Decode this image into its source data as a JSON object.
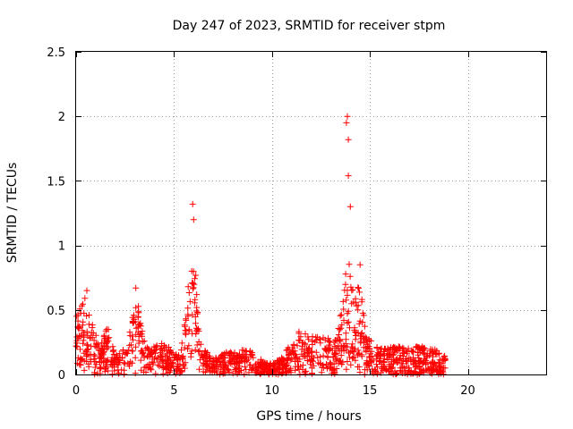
{
  "chart_data": {
    "type": "scatter",
    "title": "Day 247 of 2023, SRMTID for receiver stpm",
    "xlabel": "GPS time / hours",
    "ylabel": "SRMTID / TECUs",
    "xlim": [
      0,
      24
    ],
    "ylim": [
      0,
      2.5
    ],
    "xticks": [
      0,
      5,
      10,
      15,
      20
    ],
    "xtick_labels": [
      "0",
      "5",
      "10",
      "15",
      "20"
    ],
    "yticks": [
      0,
      0.5,
      1,
      1.5,
      2,
      2.5
    ],
    "ytick_labels": [
      "0",
      "0.5",
      "1",
      "1.5",
      "2",
      "2.5"
    ],
    "grid": true,
    "marker": "plus",
    "series_color": "#ff0000",
    "series": [
      {
        "name": "SRMTID",
        "peaks": [
          {
            "x": 0.55,
            "y": 0.65
          },
          {
            "x": 3.05,
            "y": 0.67
          },
          {
            "x": 5.95,
            "y": 1.32
          },
          {
            "x": 6.0,
            "y": 1.2
          },
          {
            "x": 13.8,
            "y": 1.95
          },
          {
            "x": 13.85,
            "y": 2.0
          },
          {
            "x": 13.9,
            "y": 1.82
          },
          {
            "x": 13.9,
            "y": 1.54
          },
          {
            "x": 14.0,
            "y": 1.3
          },
          {
            "x": 14.5,
            "y": 0.85
          }
        ],
        "envelope": [
          {
            "x": 0.0,
            "y": 0.45
          },
          {
            "x": 0.3,
            "y": 0.55
          },
          {
            "x": 0.5,
            "y": 0.62
          },
          {
            "x": 0.8,
            "y": 0.45
          },
          {
            "x": 1.2,
            "y": 0.2
          },
          {
            "x": 1.6,
            "y": 0.38
          },
          {
            "x": 2.0,
            "y": 0.15
          },
          {
            "x": 2.5,
            "y": 0.25
          },
          {
            "x": 2.9,
            "y": 0.45
          },
          {
            "x": 3.1,
            "y": 0.6
          },
          {
            "x": 3.4,
            "y": 0.35
          },
          {
            "x": 3.8,
            "y": 0.2
          },
          {
            "x": 4.2,
            "y": 0.3
          },
          {
            "x": 4.8,
            "y": 0.2
          },
          {
            "x": 5.3,
            "y": 0.15
          },
          {
            "x": 5.6,
            "y": 0.45
          },
          {
            "x": 5.8,
            "y": 0.85
          },
          {
            "x": 6.1,
            "y": 0.8
          },
          {
            "x": 6.3,
            "y": 0.25
          },
          {
            "x": 7.0,
            "y": 0.12
          },
          {
            "x": 8.0,
            "y": 0.2
          },
          {
            "x": 9.0,
            "y": 0.18
          },
          {
            "x": 9.6,
            "y": 0.1
          },
          {
            "x": 10.0,
            "y": 0.08
          },
          {
            "x": 10.5,
            "y": 0.15
          },
          {
            "x": 11.0,
            "y": 0.25
          },
          {
            "x": 11.4,
            "y": 0.35
          },
          {
            "x": 12.0,
            "y": 0.3
          },
          {
            "x": 12.8,
            "y": 0.3
          },
          {
            "x": 13.2,
            "y": 0.25
          },
          {
            "x": 13.6,
            "y": 0.55
          },
          {
            "x": 13.9,
            "y": 1.1
          },
          {
            "x": 14.2,
            "y": 0.55
          },
          {
            "x": 14.5,
            "y": 0.75
          },
          {
            "x": 14.8,
            "y": 0.3
          },
          {
            "x": 15.5,
            "y": 0.2
          },
          {
            "x": 16.5,
            "y": 0.22
          },
          {
            "x": 17.5,
            "y": 0.22
          },
          {
            "x": 18.3,
            "y": 0.2
          },
          {
            "x": 18.8,
            "y": 0.15
          }
        ],
        "x_range": [
          0.0,
          18.85
        ]
      }
    ]
  }
}
